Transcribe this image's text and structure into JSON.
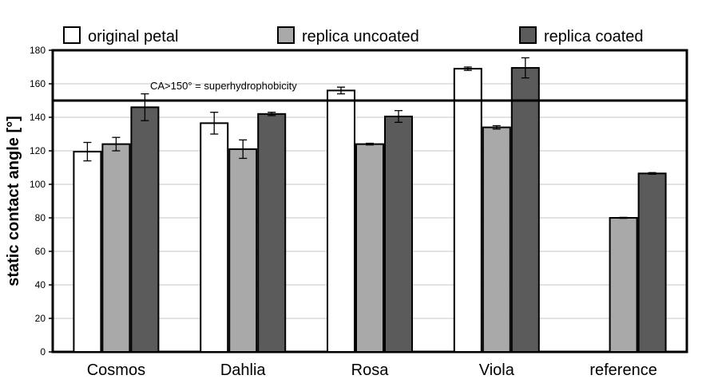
{
  "chart_data": {
    "type": "bar",
    "ylabel": "static contact angle [°]",
    "ylim": [
      0,
      180
    ],
    "yticks": [
      0,
      20,
      40,
      60,
      80,
      100,
      120,
      140,
      160,
      180
    ],
    "grid": true,
    "legend_position": "top",
    "categories": [
      "Cosmos",
      "Dahlia",
      "Rosa",
      "Viola",
      "reference"
    ],
    "series": [
      {
        "name": "original petal",
        "color": "#ffffff",
        "values": [
          119.5,
          136.5,
          156,
          169,
          null
        ],
        "errors": [
          5.5,
          6.5,
          2,
          1,
          null
        ]
      },
      {
        "name": "replica uncoated",
        "color": "#a9a9a9",
        "values": [
          124,
          121,
          124,
          134,
          80
        ],
        "errors": [
          4,
          5.5,
          0.5,
          1,
          0.3
        ]
      },
      {
        "name": "replica coated",
        "color": "#5b5b5b",
        "values": [
          146,
          142,
          140.5,
          169.5,
          106.5
        ],
        "errors": [
          8,
          1,
          3.5,
          6,
          0.5
        ]
      }
    ],
    "threshold": {
      "value": 150,
      "label": "CA>150° = superhydrophobicity"
    }
  }
}
